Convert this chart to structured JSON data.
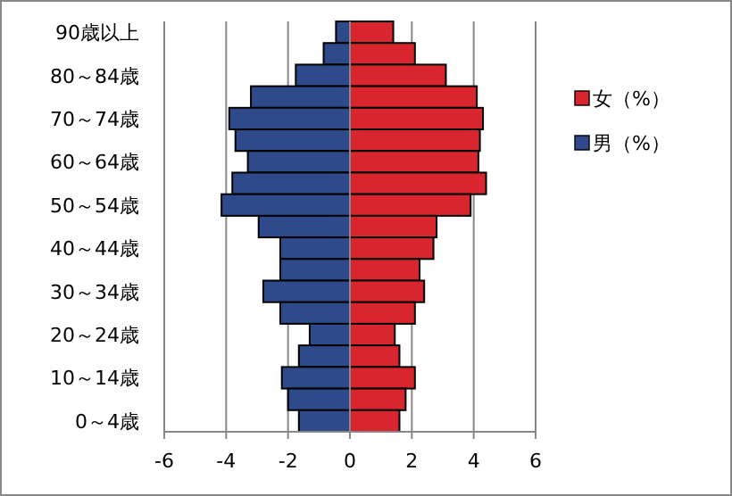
{
  "chart_data": {
    "type": "bar",
    "orientation": "horizontal",
    "categories": [
      "90歳以上",
      null,
      "80～84歳",
      null,
      "70～74歳",
      null,
      "60～64歳",
      null,
      "50～54歳",
      null,
      "40～44歳",
      null,
      "30～34歳",
      null,
      "20～24歳",
      null,
      "10～14歳",
      null,
      "0～4歳"
    ],
    "series": [
      {
        "name": "女（%）",
        "color": "#d9262e",
        "values": [
          1.4,
          2.1,
          3.1,
          4.1,
          4.3,
          4.2,
          4.15,
          4.4,
          3.9,
          2.8,
          2.7,
          2.25,
          2.4,
          2.1,
          1.45,
          1.6,
          2.1,
          1.8,
          1.6
        ]
      },
      {
        "name": "男（%）",
        "color": "#2e4a8a",
        "values": [
          -0.45,
          -0.85,
          -1.75,
          -3.2,
          -3.9,
          -3.7,
          -3.3,
          -3.8,
          -4.15,
          -2.95,
          -2.25,
          -2.25,
          -2.8,
          -2.25,
          -1.3,
          -1.65,
          -2.2,
          -2.0,
          -1.65
        ]
      }
    ],
    "xlim": [
      -6,
      6
    ],
    "xticks": [
      -6,
      -4,
      -2,
      0,
      2,
      4,
      6
    ],
    "grid": "x",
    "legend": "right",
    "stacked": true
  }
}
